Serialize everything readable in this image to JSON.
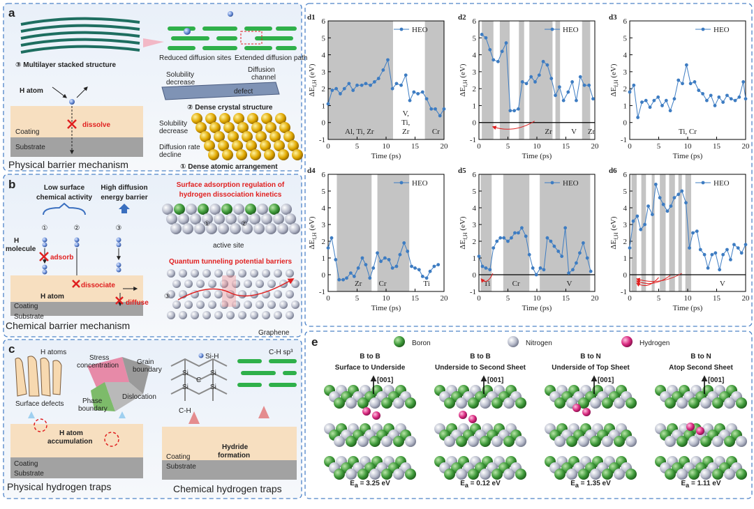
{
  "panel_a": {
    "label": "a",
    "multilayer": "③ Multilayer stacked structure",
    "reduced_sites": "Reduced diffusion sites",
    "extended_path": "Extended diffusion path",
    "solubility_top": [
      "Solubility",
      "decrease"
    ],
    "diffusion_channel": [
      "Diffusion",
      "channel"
    ],
    "defect": "defect",
    "dense_crystal": "② Dense crystal structure",
    "h_atom": "H atom",
    "dissolve": "dissolve",
    "coating": "Coating",
    "substrate": "Substrate",
    "solubility_bottom": [
      "Solubility",
      "decrease"
    ],
    "diffusion_rate": [
      "Diffusion rate",
      "decline"
    ],
    "dense_atomic": "① Dense atomic arrangement",
    "caption": "Physical barrier mechanism"
  },
  "panel_b": {
    "label": "b",
    "low_activity": [
      "Low surface",
      "chemical activity"
    ],
    "high_barrier": [
      "High diffusion",
      "energy barrier"
    ],
    "steps": [
      "①",
      "②",
      "③"
    ],
    "h_molecule": [
      "H",
      "molecule"
    ],
    "adsorb": "adsorb",
    "dissociate": "dissociate",
    "diffuse": "diffuse",
    "h_atom": "H atom",
    "coating": "Coating",
    "substrate": "Substrate",
    "caption": "Chemical barrier mechanism",
    "surface_regulation": [
      "Surface adsorption regulation of",
      "hydrogen dissociation kinetics"
    ],
    "surface_steps": [
      "①",
      "②"
    ],
    "active_site": "active site",
    "quantum": "Quantum tunneling potential barriers",
    "graphene_step": "③",
    "graphene": "Graphene"
  },
  "panel_c": {
    "label": "c",
    "h_atoms": "H atoms",
    "stress": [
      "Stress",
      "concentration"
    ],
    "grain": [
      "Grain",
      "boundary"
    ],
    "surface_defects": "Surface defects",
    "phase": [
      "Phase",
      "boundary"
    ],
    "dislocation": "Dislocation",
    "accumulation": [
      "H atom",
      "accumulation"
    ],
    "coating": "Coating",
    "substrate": "Substrate",
    "caption_physical": "Physical hydrogen traps",
    "si_h": "Si-H",
    "c_h": "C-H",
    "c_h_sp3": "C-H sp³",
    "lattice_si": "Si",
    "lattice_c": "C",
    "hydride": [
      "Hydride",
      "formation"
    ],
    "coating_right": "Coating",
    "substrate_right": "Substrate",
    "caption_chemical": "Chemical hydrogen traps"
  },
  "chart_data": [
    {
      "type": "line",
      "title": "d1",
      "x_label": "Time (ps)",
      "y_label": {
        "main": "ΔE",
        "sub": "f,H",
        "unit": " (eV)"
      },
      "x": [
        0,
        0.7,
        1.4,
        2.1,
        2.8,
        3.6,
        4.3,
        5,
        5.8,
        6.5,
        7.3,
        8,
        8.7,
        9.5,
        10.3,
        11.1,
        11.8,
        12.6,
        13.4,
        14.1,
        14.8,
        15.5,
        16.3,
        17,
        17.8,
        18.5,
        19.3,
        20
      ],
      "series": [
        {
          "name": "HEO",
          "color": "#3d7cc2",
          "values": [
            1.1,
            1.9,
            2.0,
            1.7,
            2.0,
            2.3,
            1.9,
            2.2,
            2.2,
            2.3,
            2.2,
            2.4,
            2.6,
            3.1,
            3.7,
            2.0,
            2.3,
            2.2,
            2.8,
            1.3,
            1.8,
            1.7,
            1.8,
            1.4,
            0.8,
            0.8,
            0.4,
            0.8
          ]
        }
      ],
      "xlim": [
        0,
        20
      ],
      "ylim": [
        -1,
        6
      ],
      "xticks": [
        0,
        5,
        10,
        15,
        20
      ],
      "yticks": [
        -1,
        0,
        1,
        2,
        3,
        4,
        5,
        6
      ],
      "shaded_regions": [
        [
          0,
          11.2
        ],
        [
          16.7,
          20
        ]
      ],
      "annotations": [
        [
          "Al, Ti, Zr"
        ],
        [
          "V,",
          "Ti,",
          "Zr"
        ],
        [
          "Cr"
        ]
      ],
      "zero_line": false,
      "legend": "upper right"
    },
    {
      "type": "line",
      "title": "d2",
      "x_label": "Time (ps)",
      "y_label": {
        "main": "ΔE",
        "sub": "f,H",
        "unit": " (eV)"
      },
      "x": [
        0.5,
        1.2,
        1.9,
        2.5,
        3.3,
        4.0,
        4.7,
        5.4,
        6.1,
        6.8,
        7.5,
        8.2,
        9,
        9.7,
        10.4,
        11.1,
        11.8,
        12.5,
        13.2,
        13.9,
        14.6,
        15.4,
        16.1,
        16.8,
        17.5,
        18.2,
        19,
        19.7
      ],
      "series": [
        {
          "name": "HEO",
          "color": "#3d7cc2",
          "values": [
            5.2,
            5.0,
            4.3,
            3.7,
            3.6,
            4.2,
            4.7,
            0.7,
            0.7,
            0.8,
            2.4,
            2.3,
            2.7,
            2.4,
            2.8,
            3.6,
            3.4,
            2.6,
            1.6,
            2.1,
            1.3,
            1.8,
            2.4,
            1.3,
            2.7,
            2.2,
            2.2,
            1.4
          ]
        }
      ],
      "xlim": [
        0,
        20
      ],
      "ylim": [
        -1,
        6
      ],
      "xticks": [
        0,
        5,
        10,
        15,
        20
      ],
      "yticks": [
        -1,
        0,
        1,
        2,
        3,
        4,
        5,
        6
      ],
      "shaded_regions": [
        [
          0.5,
          2.5
        ],
        [
          3.6,
          5.3
        ],
        [
          6.9,
          7.8
        ],
        [
          8.7,
          12.7
        ],
        [
          13.2,
          14
        ],
        [
          17.8,
          19.2
        ]
      ],
      "annotations": [
        [
          "Zr"
        ],
        [
          "V"
        ],
        [
          "Zr"
        ]
      ],
      "zero_line": true,
      "legend": "upper right"
    },
    {
      "type": "line",
      "title": "d3",
      "x_label": "Time (ps)",
      "y_label": {
        "main": "ΔE",
        "sub": "f,H",
        "unit": " (eV)"
      },
      "x": [
        0,
        0.7,
        1.4,
        2.1,
        2.8,
        3.5,
        4.2,
        4.9,
        5.6,
        6.3,
        7,
        7.7,
        8.4,
        9.1,
        9.8,
        10.5,
        11.2,
        11.9,
        12.6,
        13.3,
        14,
        14.7,
        15.4,
        16.1,
        16.8,
        17.5,
        18.2,
        18.9,
        19.6,
        20
      ],
      "series": [
        {
          "name": "HEO",
          "color": "#3d7cc2",
          "values": [
            1.8,
            2.2,
            0.3,
            1.2,
            1.3,
            0.9,
            1.3,
            1.5,
            1.0,
            1.3,
            0.7,
            1.4,
            2.5,
            2.3,
            3.4,
            2.3,
            2.4,
            1.9,
            1.7,
            1.3,
            1.6,
            1.0,
            1.5,
            1.2,
            1.6,
            1.4,
            1.3,
            1.5,
            2.4,
            1.4
          ]
        }
      ],
      "xlim": [
        0,
        20
      ],
      "ylim": [
        -1,
        6
      ],
      "xticks": [
        0,
        5,
        10,
        15,
        20
      ],
      "yticks": [
        -1,
        0,
        1,
        2,
        3,
        4,
        5,
        6
      ],
      "annotations": [
        [
          "Ti, Cr"
        ]
      ],
      "zero_line": false,
      "legend": "upper right"
    },
    {
      "type": "line",
      "title": "d4",
      "x_label": "Time (ps)",
      "y_label": {
        "main": "ΔE",
        "sub": "f,H",
        "unit": " (eV)"
      },
      "x": [
        0,
        0.6,
        1.3,
        1.9,
        2.6,
        3.2,
        3.9,
        4.5,
        5.2,
        5.9,
        6.5,
        7.2,
        7.8,
        8.5,
        9.1,
        9.8,
        10.5,
        11.1,
        11.8,
        12.4,
        13.1,
        13.7,
        14.4,
        15,
        15.7,
        16.3,
        17,
        17.6,
        18.3,
        19
      ],
      "series": [
        {
          "name": "HEO",
          "color": "#3d7cc2",
          "values": [
            1.6,
            2.2,
            0.9,
            -0.3,
            -0.3,
            -0.2,
            0.1,
            -0.1,
            0.4,
            1.0,
            0.6,
            -0.2,
            0.4,
            1.3,
            0.8,
            1.0,
            0.9,
            0.4,
            0.5,
            1.2,
            1.9,
            1.4,
            0.5,
            0.4,
            0.3,
            -0.1,
            -0.2,
            0.2,
            0.5,
            0.6
          ]
        }
      ],
      "xlim": [
        0,
        20
      ],
      "ylim": [
        -1,
        6
      ],
      "xticks": [
        0,
        5,
        10,
        15,
        20
      ],
      "yticks": [
        -1,
        0,
        1,
        2,
        3,
        4,
        5,
        6
      ],
      "shaded_regions": [
        [
          1.5,
          7.5
        ],
        [
          8.5,
          14
        ]
      ],
      "annotations": [
        [
          "Zr"
        ],
        [
          "Cr"
        ],
        [
          "Ti"
        ]
      ],
      "zero_line": false,
      "legend": "upper right"
    },
    {
      "type": "line",
      "title": "d5",
      "x_label": "Time (ps)",
      "y_label": {
        "main": "ΔE",
        "sub": "f,H",
        "unit": " (eV)"
      },
      "x": [
        0,
        0.6,
        1.2,
        1.9,
        2.5,
        3.1,
        3.7,
        4.3,
        5,
        5.6,
        6.2,
        6.8,
        7.4,
        8.1,
        8.7,
        9.3,
        9.9,
        10.6,
        11.2,
        11.8,
        12.4,
        13,
        13.7,
        14.3,
        14.9,
        15.5,
        16.2,
        16.8,
        17.4,
        18,
        18.7,
        19.3
      ],
      "series": [
        {
          "name": "HEO",
          "color": "#3d7cc2",
          "values": [
            1.1,
            0.5,
            0.4,
            0.3,
            1.6,
            2.0,
            2.2,
            2.2,
            2.0,
            2.2,
            2.5,
            2.5,
            2.8,
            2.3,
            1.2,
            0.4,
            0,
            0.4,
            0.3,
            2.2,
            2.0,
            1.7,
            1.4,
            1.1,
            2.8,
            0.1,
            0.3,
            0.7,
            1.3,
            1.9,
            1.0,
            0.2
          ]
        }
      ],
      "xlim": [
        0,
        20
      ],
      "ylim": [
        -1,
        6
      ],
      "xticks": [
        0,
        5,
        10,
        15,
        20
      ],
      "yticks": [
        -1,
        0,
        1,
        2,
        3,
        4,
        5,
        6
      ],
      "shaded_regions": [
        [
          0.3,
          2.2
        ],
        [
          4.2,
          8.7
        ],
        [
          10.5,
          19.2
        ]
      ],
      "annotations": [
        [
          "Ti"
        ],
        [
          "Cr"
        ],
        [
          "V"
        ]
      ],
      "zero_line": true,
      "legend": "upper right"
    },
    {
      "type": "line",
      "title": "d6",
      "x_label": "Time (ps)",
      "y_label": {
        "main": "ΔE",
        "sub": "f,H",
        "unit": " (eV)"
      },
      "x": [
        0,
        0.6,
        1.3,
        1.9,
        2.6,
        3.2,
        3.9,
        4.5,
        5.2,
        5.8,
        6.5,
        7.1,
        7.7,
        8.4,
        9,
        9.7,
        10.3,
        10.9,
        11.6,
        12.2,
        12.9,
        13.5,
        14.2,
        14.8,
        15.5,
        16.1,
        16.8,
        17.4,
        18,
        18.7,
        19.3,
        20
      ],
      "series": [
        {
          "name": "HEO",
          "color": "#3d7cc2",
          "values": [
            1.6,
            3.2,
            3.5,
            2.7,
            3.0,
            4.1,
            3.6,
            5.4,
            4.6,
            4.2,
            3.8,
            4.1,
            4.6,
            4.8,
            5.0,
            4.3,
            1.6,
            2.5,
            2.6,
            1.5,
            1.2,
            0.4,
            1.2,
            1.3,
            0.3,
            1.2,
            1.5,
            0.9,
            1.8,
            1.6,
            1.3,
            1.8
          ]
        }
      ],
      "xlim": [
        0,
        20
      ],
      "ylim": [
        -1,
        6
      ],
      "xticks": [
        0,
        5,
        10,
        15,
        20
      ],
      "yticks": [
        -1,
        0,
        1,
        2,
        3,
        4,
        5,
        6
      ],
      "shaded_regions": [
        [
          0.3,
          1.2
        ],
        [
          2,
          2.8
        ],
        [
          3.8,
          4.3
        ],
        [
          5.2,
          6.2
        ],
        [
          6.8,
          7.8
        ],
        [
          8.4,
          9
        ],
        [
          9.6,
          10.6
        ]
      ],
      "annotations": [
        [
          "V"
        ]
      ],
      "zero_line": true,
      "legend": "upper right"
    }
  ],
  "panel_e": {
    "label": "e",
    "legend": [
      "Boron",
      "Nitrogen",
      "Hydrogen"
    ],
    "columns": [
      {
        "title": [
          "B to B",
          "Surface to Underside"
        ],
        "direction": "[001]",
        "energy": {
          "symbol": "E",
          "sub": "a",
          "text": " = 3.25 eV"
        }
      },
      {
        "title": [
          "B to B",
          "Underside to Second Sheet"
        ],
        "direction": "[001]",
        "energy": {
          "symbol": "E",
          "sub": "a",
          "text": " = 0.12 eV"
        }
      },
      {
        "title": [
          "B to N",
          "Underside of Top Sheet"
        ],
        "direction": "[001]",
        "energy": {
          "symbol": "E",
          "sub": "a",
          "text": " = 1.35 eV"
        }
      },
      {
        "title": [
          "B to N",
          "Atop Second Sheet"
        ],
        "direction": "[001]",
        "energy": {
          "symbol": "E",
          "sub": "a",
          "text": " = 1.11 eV"
        }
      }
    ]
  }
}
